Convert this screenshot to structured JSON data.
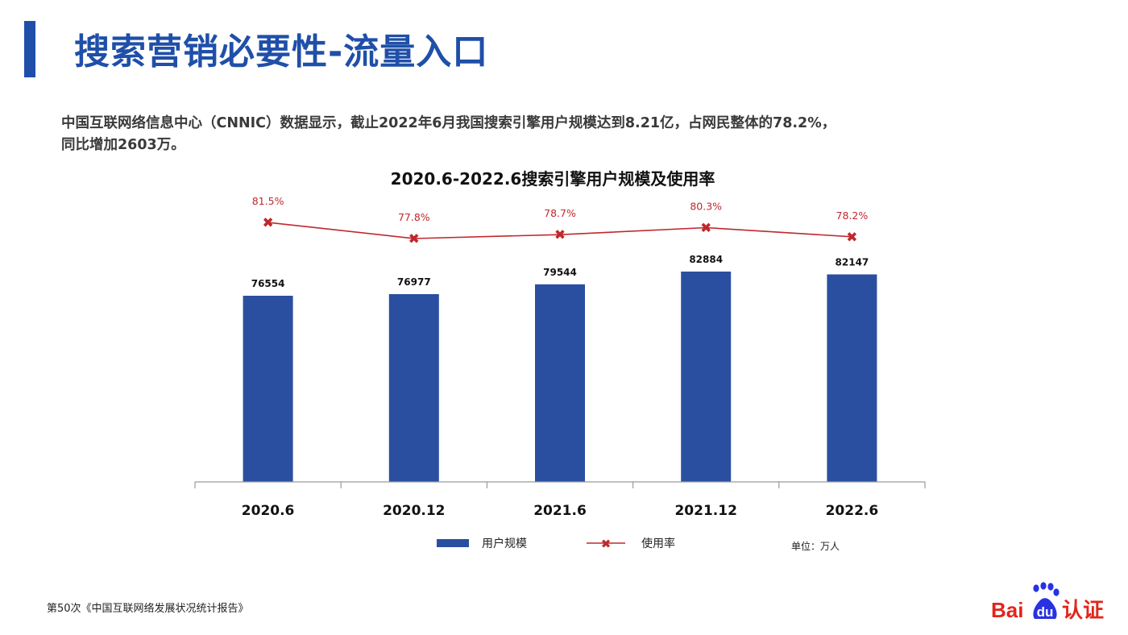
{
  "page": {
    "title": "搜索营销必要性-流量入口",
    "intro_line1": "中国互联网络信息中心（CNNIC）数据显示，截止2022年6月我国搜索引擎用户规模达到8.21亿，占网民整体的78.2%，",
    "intro_line2": "同比增加2603万。",
    "source": "第50次《中国互联网络发展状况统计报告》",
    "logo_text_bai": "Bai",
    "logo_text_du": "du",
    "logo_text_cert": "认证"
  },
  "colors": {
    "accent": "#1f4fa8",
    "bar": "#2a4fa0",
    "line": "#c0282d",
    "logo_red": "#e1251b",
    "logo_blue": "#2932e1"
  },
  "chart_data": {
    "type": "bar",
    "title": "2020.6-2022.6搜索引擎用户规模及使用率",
    "categories": [
      "2020.6",
      "2020.12",
      "2021.6",
      "2021.12",
      "2022.6"
    ],
    "series": [
      {
        "name": "用户规模",
        "kind": "bar",
        "values": [
          76554,
          76977,
          79544,
          82884,
          82147
        ],
        "labels": [
          "76554",
          "76977",
          "79544",
          "82884",
          "82147"
        ]
      },
      {
        "name": "使用率",
        "kind": "line",
        "values": [
          81.5,
          77.8,
          78.7,
          80.3,
          78.2
        ],
        "labels": [
          "81.5%",
          "77.8%",
          "78.7%",
          "80.3%",
          "78.2%"
        ]
      }
    ],
    "unit_note": "单位：万人",
    "legend_position": "bottom",
    "grid": false
  }
}
